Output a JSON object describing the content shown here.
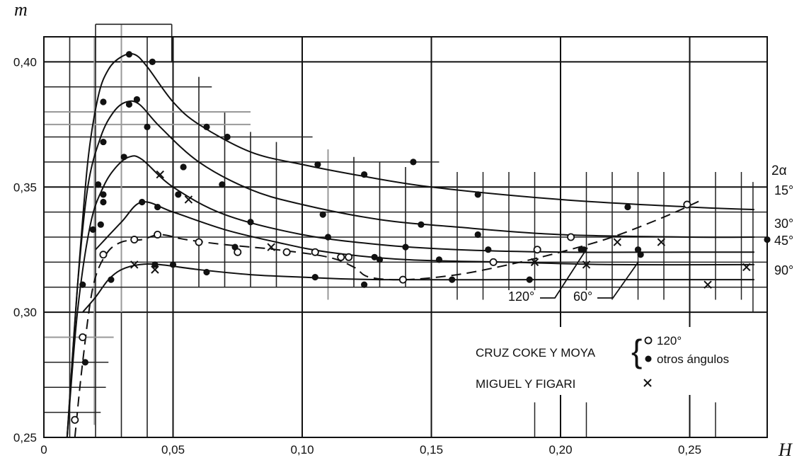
{
  "chart_data": {
    "type": "scatter",
    "title": "",
    "xlabel": "H",
    "ylabel": "m",
    "xlim": [
      0,
      0.28
    ],
    "ylim": [
      0.25,
      0.41
    ],
    "x_ticks": [
      "0",
      "0,05",
      "0,10",
      "0,15",
      "0,20",
      "0,25"
    ],
    "y_ticks": [
      "0,25",
      "0,30",
      "0,35",
      "0,40"
    ],
    "grid": true,
    "legend_position": "bottom-right",
    "right_header": "2α",
    "series": [
      {
        "name": "15°",
        "marker": "filled",
        "curve": [
          [
            0.009,
            0.25
          ],
          [
            0.013,
            0.31
          ],
          [
            0.017,
            0.36
          ],
          [
            0.021,
            0.386
          ],
          [
            0.025,
            0.397
          ],
          [
            0.03,
            0.402
          ],
          [
            0.035,
            0.403
          ],
          [
            0.04,
            0.398
          ],
          [
            0.05,
            0.384
          ],
          [
            0.06,
            0.375
          ],
          [
            0.08,
            0.364
          ],
          [
            0.1,
            0.359
          ],
          [
            0.12,
            0.355
          ],
          [
            0.15,
            0.35
          ],
          [
            0.2,
            0.345
          ],
          [
            0.25,
            0.342
          ],
          [
            0.275,
            0.341
          ]
        ],
        "points": [
          [
            0.023,
            0.384
          ],
          [
            0.033,
            0.403
          ],
          [
            0.042,
            0.4
          ],
          [
            0.063,
            0.374
          ],
          [
            0.071,
            0.37
          ],
          [
            0.106,
            0.359
          ],
          [
            0.124,
            0.355
          ],
          [
            0.143,
            0.36
          ],
          [
            0.168,
            0.347
          ],
          [
            0.226,
            0.342
          ]
        ]
      },
      {
        "name": "30°",
        "marker": "filled",
        "curve": [
          [
            0.009,
            0.25
          ],
          [
            0.013,
            0.31
          ],
          [
            0.017,
            0.35
          ],
          [
            0.022,
            0.37
          ],
          [
            0.027,
            0.38
          ],
          [
            0.032,
            0.384
          ],
          [
            0.037,
            0.383
          ],
          [
            0.045,
            0.374
          ],
          [
            0.06,
            0.36
          ],
          [
            0.08,
            0.349
          ],
          [
            0.1,
            0.343
          ],
          [
            0.13,
            0.337
          ],
          [
            0.16,
            0.334
          ],
          [
            0.2,
            0.331
          ],
          [
            0.25,
            0.33
          ],
          [
            0.275,
            0.33
          ]
        ],
        "points": [
          [
            0.023,
            0.368
          ],
          [
            0.033,
            0.383
          ],
          [
            0.036,
            0.385
          ],
          [
            0.04,
            0.374
          ],
          [
            0.054,
            0.358
          ],
          [
            0.069,
            0.351
          ],
          [
            0.108,
            0.339
          ],
          [
            0.146,
            0.335
          ],
          [
            0.168,
            0.331
          ],
          [
            0.28,
            0.329
          ]
        ]
      },
      {
        "name": "45°",
        "marker": "filled",
        "curve": [
          [
            0.009,
            0.25
          ],
          [
            0.013,
            0.3
          ],
          [
            0.018,
            0.335
          ],
          [
            0.023,
            0.35
          ],
          [
            0.028,
            0.358
          ],
          [
            0.033,
            0.362
          ],
          [
            0.038,
            0.361
          ],
          [
            0.05,
            0.35
          ],
          [
            0.07,
            0.339
          ],
          [
            0.1,
            0.331
          ],
          [
            0.13,
            0.327
          ],
          [
            0.16,
            0.325
          ],
          [
            0.2,
            0.324
          ],
          [
            0.25,
            0.324
          ],
          [
            0.275,
            0.324
          ]
        ],
        "points": [
          [
            0.021,
            0.351
          ],
          [
            0.023,
            0.347
          ],
          [
            0.023,
            0.344
          ],
          [
            0.031,
            0.362
          ],
          [
            0.052,
            0.347
          ],
          [
            0.08,
            0.336
          ],
          [
            0.11,
            0.33
          ],
          [
            0.13,
            0.321
          ],
          [
            0.14,
            0.326
          ],
          [
            0.172,
            0.325
          ],
          [
            0.208,
            0.325
          ],
          [
            0.23,
            0.325
          ]
        ]
      },
      {
        "name": "90°",
        "marker": "filled",
        "curve": [
          [
            0.015,
            0.3
          ],
          [
            0.02,
            0.306
          ],
          [
            0.025,
            0.313
          ],
          [
            0.03,
            0.317
          ],
          [
            0.037,
            0.319
          ],
          [
            0.045,
            0.319
          ],
          [
            0.06,
            0.317
          ],
          [
            0.08,
            0.315
          ],
          [
            0.1,
            0.314
          ],
          [
            0.13,
            0.313
          ],
          [
            0.2,
            0.313
          ],
          [
            0.25,
            0.313
          ],
          [
            0.275,
            0.313
          ]
        ],
        "points": [
          [
            0.015,
            0.311
          ],
          [
            0.019,
            0.333
          ],
          [
            0.026,
            0.313
          ],
          [
            0.043,
            0.319
          ],
          [
            0.05,
            0.319
          ],
          [
            0.063,
            0.316
          ],
          [
            0.105,
            0.314
          ],
          [
            0.124,
            0.311
          ],
          [
            0.158,
            0.313
          ],
          [
            0.188,
            0.313
          ],
          [
            0.231,
            0.323
          ]
        ]
      },
      {
        "name": "60°",
        "marker": "filled",
        "curve": [
          [
            0.02,
            0.325
          ],
          [
            0.03,
            0.336
          ],
          [
            0.038,
            0.344
          ],
          [
            0.05,
            0.34
          ],
          [
            0.07,
            0.333
          ],
          [
            0.09,
            0.328
          ],
          [
            0.11,
            0.324
          ],
          [
            0.14,
            0.321
          ],
          [
            0.18,
            0.32
          ],
          [
            0.22,
            0.319
          ],
          [
            0.275,
            0.319
          ]
        ],
        "points": [
          [
            0.016,
            0.28
          ],
          [
            0.022,
            0.335
          ],
          [
            0.038,
            0.344
          ],
          [
            0.044,
            0.342
          ],
          [
            0.074,
            0.326
          ],
          [
            0.128,
            0.322
          ],
          [
            0.153,
            0.321
          ],
          [
            0.209,
            0.325
          ]
        ]
      },
      {
        "name": "120°",
        "marker": "open",
        "curve": [
          [
            0.012,
            0.25
          ],
          [
            0.015,
            0.28
          ],
          [
            0.019,
            0.31
          ],
          [
            0.024,
            0.323
          ],
          [
            0.03,
            0.328
          ],
          [
            0.038,
            0.329
          ],
          [
            0.045,
            0.331
          ],
          [
            0.055,
            0.329
          ],
          [
            0.07,
            0.327
          ],
          [
            0.09,
            0.325
          ],
          [
            0.11,
            0.322
          ],
          [
            0.12,
            0.318
          ],
          [
            0.126,
            0.314
          ],
          [
            0.14,
            0.313
          ],
          [
            0.16,
            0.315
          ],
          [
            0.18,
            0.319
          ],
          [
            0.2,
            0.324
          ],
          [
            0.22,
            0.33
          ],
          [
            0.24,
            0.338
          ],
          [
            0.255,
            0.345
          ]
        ],
        "points": [
          [
            0.012,
            0.257
          ],
          [
            0.015,
            0.29
          ],
          [
            0.023,
            0.323
          ],
          [
            0.035,
            0.329
          ],
          [
            0.044,
            0.331
          ],
          [
            0.06,
            0.328
          ],
          [
            0.075,
            0.324
          ],
          [
            0.094,
            0.324
          ],
          [
            0.105,
            0.324
          ],
          [
            0.115,
            0.322
          ],
          [
            0.118,
            0.322
          ],
          [
            0.139,
            0.313
          ],
          [
            0.174,
            0.32
          ],
          [
            0.191,
            0.325
          ],
          [
            0.204,
            0.33
          ],
          [
            0.249,
            0.343
          ]
        ]
      },
      {
        "name": "MIGUEL Y FIGARI",
        "marker": "x",
        "points": [
          [
            0.045,
            0.355
          ],
          [
            0.056,
            0.345
          ],
          [
            0.035,
            0.319
          ],
          [
            0.043,
            0.317
          ],
          [
            0.088,
            0.326
          ],
          [
            0.19,
            0.32
          ],
          [
            0.21,
            0.319
          ],
          [
            0.222,
            0.328
          ],
          [
            0.239,
            0.328
          ],
          [
            0.257,
            0.311
          ],
          [
            0.272,
            0.318
          ]
        ]
      }
    ],
    "curve_labels": [
      "15°",
      "30°",
      "45°",
      "90°"
    ],
    "annotations": [
      "120°",
      "60°"
    ],
    "legend": {
      "group_label": "CRUZ COKE Y MOYA",
      "open_label": "120°",
      "filled_label": "otros ángulos",
      "cross_label": "MIGUEL Y FIGARI"
    }
  }
}
